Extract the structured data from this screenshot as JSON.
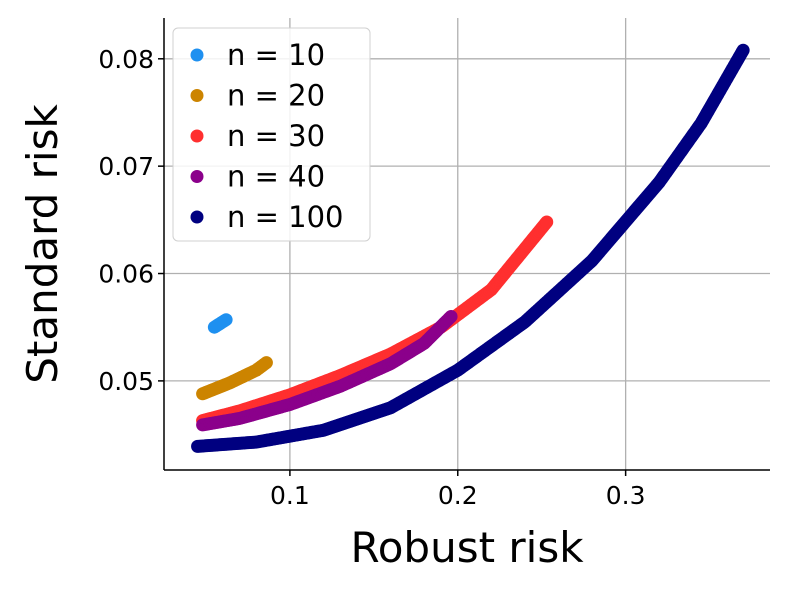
{
  "chart_data": {
    "type": "scatter",
    "title": "",
    "xlabel": "Robust risk",
    "ylabel": "Standard risk",
    "xlim": [
      0.025,
      0.386
    ],
    "ylim": [
      0.0417,
      0.0838
    ],
    "xticks": [
      0.1,
      0.2,
      0.3
    ],
    "xtick_labels": [
      "0.1",
      "0.2",
      "0.3"
    ],
    "yticks": [
      0.05,
      0.06,
      0.07,
      0.08
    ],
    "ytick_labels": [
      "0.05",
      "0.06",
      "0.07",
      "0.08"
    ],
    "grid": true,
    "legend_position": "top-left",
    "series": [
      {
        "name": "n = 10",
        "color": "#1E90F0",
        "points": [
          [
            0.055,
            0.055
          ],
          [
            0.058,
            0.0553
          ],
          [
            0.06,
            0.0555
          ],
          [
            0.062,
            0.0557
          ]
        ]
      },
      {
        "name": "n = 20",
        "color": "#CC8400",
        "points": [
          [
            0.048,
            0.0488
          ],
          [
            0.056,
            0.0493
          ],
          [
            0.064,
            0.0498
          ],
          [
            0.072,
            0.0504
          ],
          [
            0.08,
            0.051
          ],
          [
            0.086,
            0.0517
          ]
        ]
      },
      {
        "name": "n = 30",
        "color": "#FF2F2F",
        "points": [
          [
            0.048,
            0.0463
          ],
          [
            0.07,
            0.0472
          ],
          [
            0.1,
            0.0487
          ],
          [
            0.13,
            0.0505
          ],
          [
            0.16,
            0.0525
          ],
          [
            0.19,
            0.055
          ],
          [
            0.22,
            0.0585
          ],
          [
            0.253,
            0.0648
          ]
        ]
      },
      {
        "name": "n = 40",
        "color": "#8B008B",
        "points": [
          [
            0.048,
            0.0459
          ],
          [
            0.07,
            0.0465
          ],
          [
            0.1,
            0.0478
          ],
          [
            0.13,
            0.0495
          ],
          [
            0.16,
            0.0516
          ],
          [
            0.18,
            0.0535
          ],
          [
            0.196,
            0.056
          ]
        ]
      },
      {
        "name": "n = 100",
        "color": "#000080",
        "points": [
          [
            0.045,
            0.0439
          ],
          [
            0.08,
            0.0443
          ],
          [
            0.12,
            0.0454
          ],
          [
            0.16,
            0.0475
          ],
          [
            0.2,
            0.051
          ],
          [
            0.24,
            0.0555
          ],
          [
            0.28,
            0.0612
          ],
          [
            0.32,
            0.0685
          ],
          [
            0.345,
            0.074
          ],
          [
            0.37,
            0.0808
          ]
        ]
      }
    ]
  }
}
